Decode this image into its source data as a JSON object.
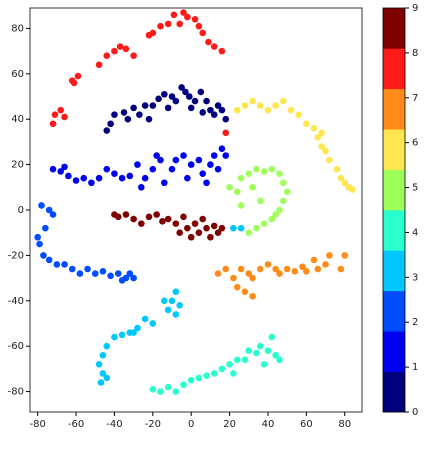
{
  "chart_data": {
    "type": "scatter",
    "xlim": [
      -84,
      89
    ],
    "ylim": [
      -89,
      89
    ],
    "xticks": [
      -80,
      -60,
      -40,
      -20,
      0,
      20,
      40,
      60,
      80
    ],
    "yticks": [
      -80,
      -60,
      -40,
      -20,
      0,
      20,
      40,
      60,
      80
    ],
    "colorbar": {
      "clim": [
        0,
        9
      ],
      "ticks": [
        0,
        1,
        2,
        3,
        4,
        5,
        6,
        7,
        8,
        9
      ],
      "colors": [
        "#00007f",
        "#0000f1",
        "#004cff",
        "#00c8ff",
        "#29ffce",
        "#9eff5a",
        "#ffe650",
        "#ff8c1a",
        "#ff1a1a",
        "#7f0000"
      ]
    },
    "series": [
      {
        "color": "#00007f",
        "x": [
          -44,
          -42,
          -40,
          -35,
          -33,
          -30,
          -27,
          -24,
          -20,
          -17,
          -14,
          -10,
          -8,
          -5,
          -3,
          -1,
          2,
          5,
          8,
          10,
          12,
          14,
          16,
          18,
          -22,
          -12,
          0,
          6
        ],
        "y": [
          35,
          38,
          42,
          43,
          40,
          45,
          42,
          46,
          46,
          49,
          51,
          50,
          48,
          54,
          52,
          50,
          48,
          52,
          48,
          44,
          42,
          46,
          44,
          40,
          40,
          45,
          45,
          43
        ]
      },
      {
        "color": "#0000f1",
        "x": [
          -72,
          -68,
          -66,
          -64,
          -60,
          -56,
          -52,
          -48,
          -44,
          -40,
          -36,
          -32,
          -28,
          -24,
          -20,
          -16,
          -14,
          -10,
          -8,
          -4,
          -2,
          0,
          4,
          6,
          8,
          10,
          12,
          14,
          16,
          18,
          -26,
          -18
        ],
        "y": [
          18,
          17,
          19,
          15,
          13,
          14,
          12,
          14,
          18,
          16,
          14,
          15,
          20,
          14,
          18,
          22,
          12,
          18,
          22,
          24,
          14,
          20,
          22,
          16,
          12,
          20,
          24,
          18,
          27,
          24,
          10,
          24
        ]
      },
      {
        "color": "#004cff",
        "x": [
          -78,
          -74,
          -72,
          -76,
          -80,
          -79,
          -77,
          -74,
          -70,
          -66,
          -62,
          -58,
          -54,
          -50,
          -46,
          -42,
          -38,
          -36,
          -34,
          -32,
          -30
        ],
        "y": [
          2,
          0,
          -2,
          -8,
          -12,
          -15,
          -20,
          -22,
          -24,
          -24,
          -26,
          -28,
          -26,
          -28,
          -27,
          -29,
          -28,
          -31,
          -30,
          -28,
          -30
        ]
      },
      {
        "color": "#00c8ff",
        "x": [
          -8,
          -10,
          -6,
          -12,
          -8,
          -14,
          -24,
          -28,
          -32,
          -36,
          -40,
          -44,
          -46,
          -48,
          -46,
          -47,
          -44,
          -30,
          -20,
          22,
          26
        ],
        "y": [
          -36,
          -40,
          -42,
          -44,
          -46,
          -40,
          -48,
          -52,
          -54,
          -55,
          -56,
          -60,
          -64,
          -68,
          -72,
          -76,
          -74,
          -54,
          -50,
          -8,
          -8
        ]
      },
      {
        "color": "#29ffce",
        "x": [
          -20,
          -16,
          -12,
          -8,
          -4,
          0,
          4,
          8,
          12,
          16,
          20,
          24,
          28,
          30,
          34,
          36,
          40,
          42,
          44,
          46,
          38,
          22
        ],
        "y": [
          -79,
          -80,
          -78,
          -80,
          -77,
          -75,
          -74,
          -73,
          -72,
          -70,
          -68,
          -66,
          -66,
          -62,
          -63,
          -60,
          -62,
          -56,
          -64,
          -66,
          -68,
          -72
        ]
      },
      {
        "color": "#9eff5a",
        "x": [
          20,
          24,
          26,
          30,
          34,
          38,
          42,
          46,
          48,
          50,
          48,
          46,
          44,
          42,
          38,
          34,
          30,
          26,
          32,
          36
        ],
        "y": [
          10,
          8,
          14,
          16,
          18,
          17,
          18,
          16,
          12,
          8,
          4,
          0,
          -2,
          -4,
          -6,
          -8,
          -10,
          2,
          10,
          4
        ]
      },
      {
        "color": "#ffe650",
        "x": [
          24,
          28,
          32,
          36,
          40,
          44,
          48,
          52,
          56,
          60,
          64,
          66,
          68,
          70,
          72,
          76,
          78,
          80,
          82,
          84,
          68
        ],
        "y": [
          44,
          46,
          48,
          46,
          44,
          46,
          48,
          44,
          42,
          38,
          36,
          32,
          28,
          26,
          22,
          18,
          14,
          12,
          10,
          9,
          34
        ]
      },
      {
        "color": "#ff8c1a",
        "x": [
          14,
          18,
          22,
          24,
          26,
          28,
          30,
          32,
          36,
          40,
          44,
          46,
          50,
          54,
          58,
          60,
          64,
          66,
          70,
          72,
          78,
          80,
          32
        ],
        "y": [
          -28,
          -26,
          -30,
          -34,
          -26,
          -36,
          -28,
          -30,
          -26,
          -24,
          -26,
          -28,
          -26,
          -27,
          -25,
          -27,
          -22,
          -26,
          -24,
          -20,
          -26,
          -20,
          -38
        ]
      },
      {
        "color": "#ff1a1a",
        "x": [
          -72,
          -71,
          -68,
          -66,
          -62,
          -59,
          -61,
          -48,
          -44,
          -40,
          -37,
          -34,
          -30,
          -22,
          -20,
          -16,
          -12,
          -9,
          -6,
          -4,
          -2,
          2,
          4,
          6,
          9,
          12,
          16,
          18
        ],
        "y": [
          38,
          42,
          44,
          41,
          57,
          59,
          56,
          64,
          68,
          70,
          72,
          71,
          68,
          77,
          78,
          81,
          82,
          86,
          82,
          87,
          85,
          84,
          81,
          78,
          74,
          72,
          70,
          34
        ]
      },
      {
        "color": "#7f0000",
        "x": [
          -40,
          -38,
          -34,
          -30,
          -26,
          -22,
          -18,
          -15,
          -12,
          -8,
          -6,
          -4,
          -2,
          0,
          2,
          4,
          6,
          8,
          10,
          12,
          14,
          16
        ],
        "y": [
          -2,
          -3,
          -2,
          -4,
          -6,
          -3,
          -2,
          -5,
          -4,
          -6,
          -10,
          -3,
          -8,
          -12,
          -6,
          -10,
          -4,
          -8,
          -12,
          -7,
          -10,
          -8
        ]
      }
    ]
  }
}
